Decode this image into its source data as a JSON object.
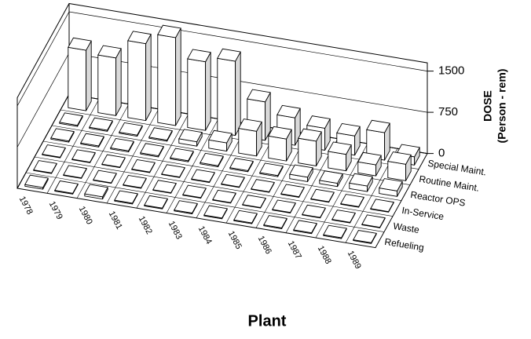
{
  "chart_data": {
    "type": "bar3d",
    "xlabel": "Plant",
    "zlabel_lines": [
      "DOSE",
      "(Person - rem)"
    ],
    "categories": [
      "1978",
      "1979",
      "1980",
      "1981",
      "1982",
      "1983",
      "1984",
      "1985",
      "1986",
      "1987",
      "1988",
      "1989"
    ],
    "series": [
      {
        "name": "Special Maint.",
        "color": "#ffffff",
        "values": [
          1100,
          1050,
          1400,
          1600,
          1250,
          1350,
          700,
          500,
          400,
          350,
          500,
          150
        ]
      },
      {
        "name": "Routine Maint.",
        "color": "#ffffff",
        "values": [
          20,
          20,
          20,
          20,
          80,
          150,
          450,
          400,
          450,
          300,
          200,
          300
        ]
      },
      {
        "name": "Reactor OPS",
        "color": "#ffffff",
        "values": [
          20,
          20,
          20,
          20,
          20,
          20,
          20,
          20,
          80,
          60,
          100,
          100
        ]
      },
      {
        "name": "In-Service",
        "color": "#ffffff",
        "values": [
          10,
          10,
          10,
          10,
          10,
          10,
          10,
          10,
          10,
          10,
          10,
          10
        ]
      },
      {
        "name": "Waste",
        "color": "#ffffff",
        "values": [
          10,
          10,
          10,
          10,
          10,
          10,
          10,
          10,
          10,
          10,
          10,
          10
        ]
      },
      {
        "name": "Refueling",
        "color": "#ffffff",
        "values": [
          30,
          15,
          40,
          15,
          15,
          15,
          15,
          15,
          15,
          15,
          15,
          15
        ]
      }
    ],
    "zlim": [
      0,
      1650
    ],
    "zticks": [
      0,
      750,
      1500
    ],
    "grid": true
  }
}
